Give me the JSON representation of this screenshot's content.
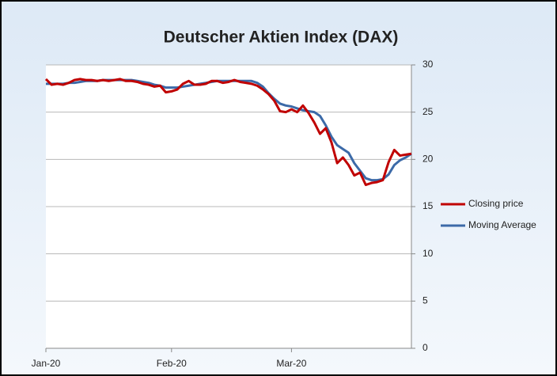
{
  "chart_data": {
    "type": "line",
    "title": "Deutscher Aktien Index (DAX)",
    "categories": [
      "Jan-20",
      null,
      null,
      null,
      null,
      null,
      null,
      null,
      null,
      null,
      null,
      null,
      null,
      null,
      null,
      null,
      null,
      null,
      null,
      null,
      null,
      null,
      "Feb-20",
      null,
      null,
      null,
      null,
      null,
      null,
      null,
      null,
      null,
      null,
      null,
      null,
      null,
      null,
      null,
      null,
      null,
      null,
      null,
      null,
      "Mar-20",
      null,
      null,
      null,
      null,
      null,
      null,
      null,
      null,
      null,
      null,
      null,
      null,
      null,
      null,
      null,
      null,
      null,
      null,
      null,
      null,
      null
    ],
    "series": [
      {
        "name": "Closing price",
        "color": "#c00000",
        "values": [
          28.5,
          27.9,
          28.0,
          27.9,
          28.1,
          28.4,
          28.5,
          28.4,
          28.4,
          28.3,
          28.4,
          28.3,
          28.4,
          28.5,
          28.3,
          28.3,
          28.2,
          28.0,
          27.9,
          27.7,
          27.8,
          27.1,
          27.2,
          27.4,
          28.0,
          28.3,
          27.9,
          27.9,
          28.0,
          28.3,
          28.3,
          28.1,
          28.2,
          28.4,
          28.2,
          28.1,
          28.0,
          27.8,
          27.4,
          26.9,
          26.2,
          25.1,
          25.0,
          25.3,
          25.0,
          25.7,
          24.9,
          23.9,
          22.7,
          23.3,
          21.8,
          19.6,
          20.2,
          19.4,
          18.3,
          18.6,
          17.3,
          17.5,
          17.6,
          17.8,
          19.7,
          21.0,
          20.4,
          20.5,
          20.6
        ]
      },
      {
        "name": "Moving Average",
        "color": "#3c6aa8",
        "values": [
          28.0,
          28.0,
          28.0,
          28.0,
          28.1,
          28.1,
          28.2,
          28.3,
          28.3,
          28.3,
          28.4,
          28.4,
          28.4,
          28.4,
          28.4,
          28.4,
          28.3,
          28.2,
          28.1,
          27.9,
          27.8,
          27.6,
          27.6,
          27.6,
          27.7,
          27.8,
          27.9,
          28.0,
          28.1,
          28.2,
          28.3,
          28.3,
          28.3,
          28.3,
          28.3,
          28.3,
          28.3,
          28.1,
          27.7,
          27.0,
          26.4,
          25.9,
          25.7,
          25.6,
          25.4,
          25.2,
          25.1,
          25.0,
          24.6,
          23.6,
          22.4,
          21.5,
          21.1,
          20.7,
          19.6,
          18.8,
          18.0,
          17.8,
          17.8,
          17.9,
          18.4,
          19.4,
          19.9,
          20.2,
          20.6
        ]
      }
    ],
    "ylim": [
      0,
      30
    ],
    "yticks": [
      0,
      5,
      10,
      15,
      20,
      25,
      30
    ],
    "grid": true,
    "legend": "right"
  }
}
